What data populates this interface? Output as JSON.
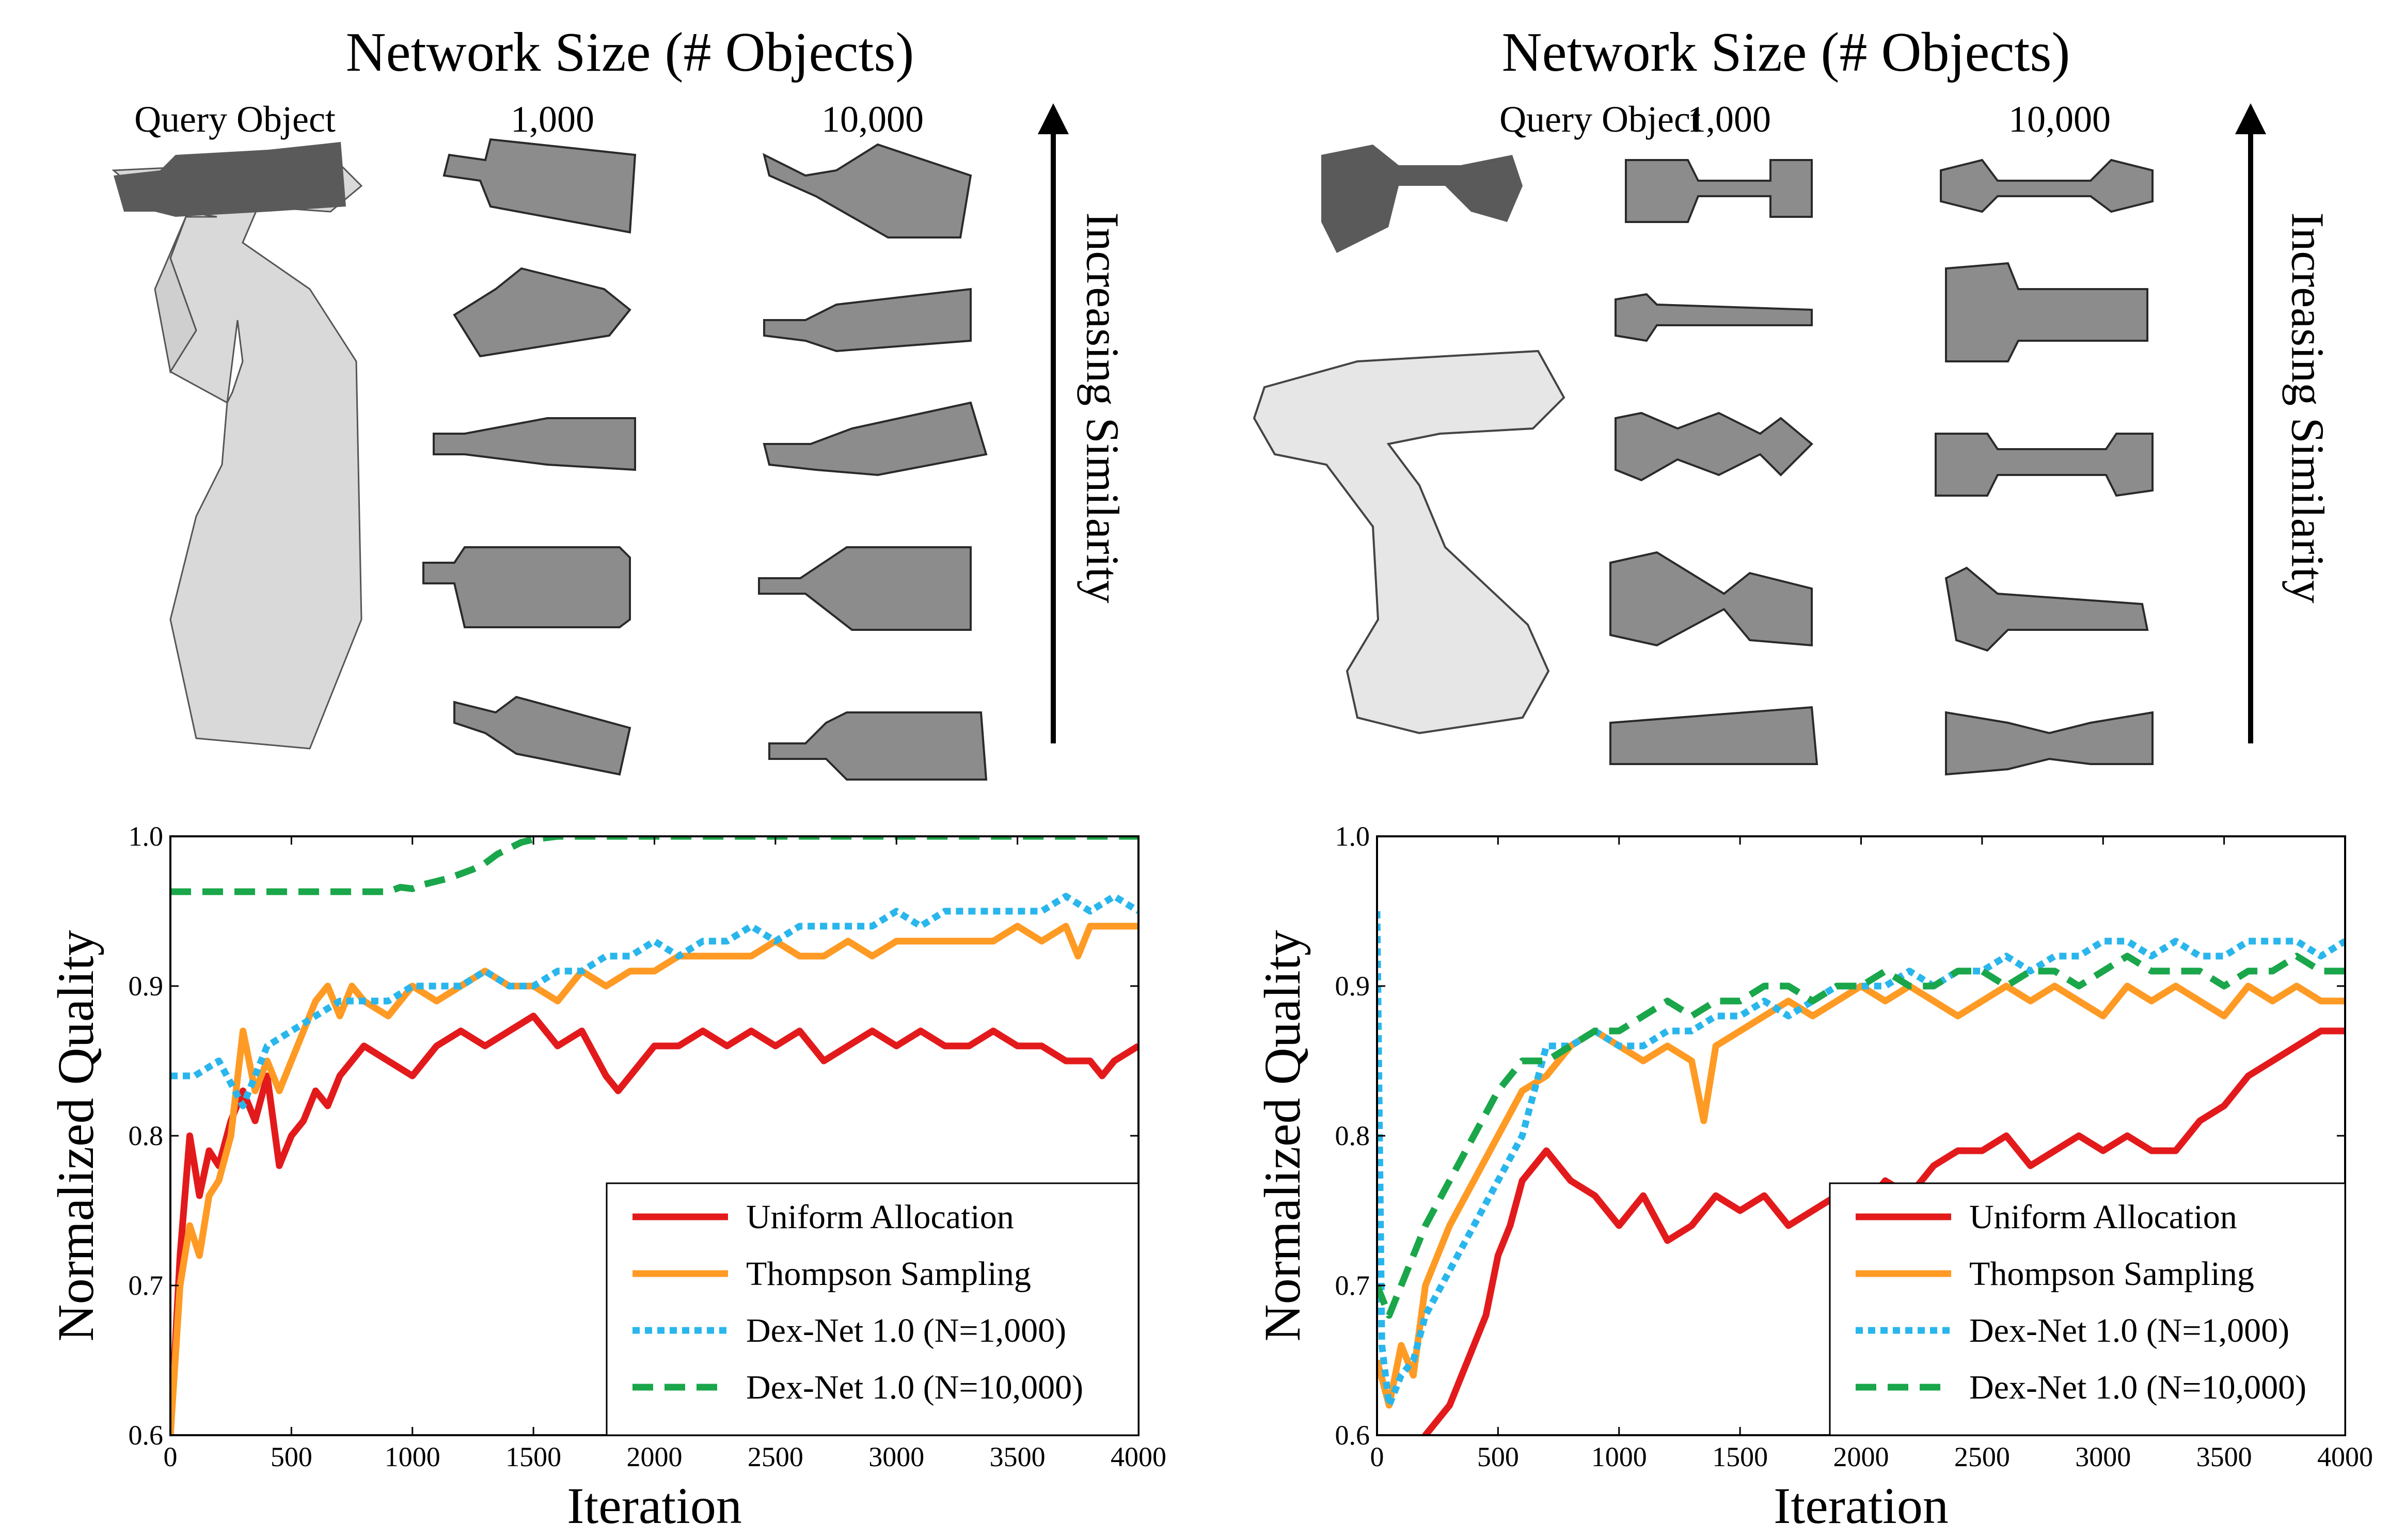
{
  "figure": {
    "network_title": "Network Size (# Objects)",
    "query_label": "Query Object",
    "col_small": "1,000",
    "col_large": "10,000",
    "similarity_label": "Increasing Similarity"
  },
  "chart_data": [
    {
      "type": "line",
      "xlabel": "Iteration",
      "ylabel": "Normalized Quality",
      "xlim": [
        0,
        4000
      ],
      "ylim": [
        0.6,
        1.0
      ],
      "xticks": [
        "0",
        "500",
        "1000",
        "1500",
        "2000",
        "2500",
        "3000",
        "3500",
        "4000"
      ],
      "yticks": [
        "0.6",
        "0.7",
        "0.8",
        "0.9",
        "1.0"
      ],
      "legend_position": "lower-right",
      "grid": false,
      "series": [
        {
          "name": "Uniform Allocation",
          "color": "#e31a1c",
          "dash": "solid",
          "x": [
            0,
            40,
            80,
            120,
            160,
            200,
            250,
            300,
            350,
            400,
            450,
            500,
            550,
            600,
            650,
            700,
            750,
            800,
            900,
            1000,
            1100,
            1200,
            1300,
            1400,
            1500,
            1600,
            1700,
            1800,
            1850,
            1900,
            2000,
            2100,
            2200,
            2300,
            2400,
            2500,
            2600,
            2700,
            2800,
            2900,
            3000,
            3100,
            3200,
            3300,
            3400,
            3500,
            3600,
            3700,
            3800,
            3850,
            3900,
            4000
          ],
          "y": [
            0.6,
            0.72,
            0.8,
            0.76,
            0.79,
            0.78,
            0.81,
            0.83,
            0.81,
            0.84,
            0.78,
            0.8,
            0.81,
            0.83,
            0.82,
            0.84,
            0.85,
            0.86,
            0.85,
            0.84,
            0.86,
            0.87,
            0.86,
            0.87,
            0.88,
            0.86,
            0.87,
            0.84,
            0.83,
            0.84,
            0.86,
            0.86,
            0.87,
            0.86,
            0.87,
            0.86,
            0.87,
            0.85,
            0.86,
            0.87,
            0.86,
            0.87,
            0.86,
            0.86,
            0.87,
            0.86,
            0.86,
            0.85,
            0.85,
            0.84,
            0.85,
            0.86
          ]
        },
        {
          "name": "Thompson Sampling",
          "color": "#ff9a24",
          "dash": "solid",
          "x": [
            0,
            40,
            80,
            120,
            160,
            200,
            250,
            300,
            350,
            400,
            450,
            500,
            550,
            600,
            650,
            700,
            750,
            800,
            900,
            1000,
            1100,
            1200,
            1300,
            1400,
            1500,
            1600,
            1700,
            1800,
            1900,
            2000,
            2100,
            2200,
            2300,
            2400,
            2500,
            2600,
            2700,
            2800,
            2900,
            3000,
            3100,
            3200,
            3300,
            3400,
            3500,
            3600,
            3700,
            3750,
            3800,
            3900,
            4000
          ],
          "y": [
            0.6,
            0.7,
            0.74,
            0.72,
            0.76,
            0.77,
            0.8,
            0.87,
            0.83,
            0.85,
            0.83,
            0.85,
            0.87,
            0.89,
            0.9,
            0.88,
            0.9,
            0.89,
            0.88,
            0.9,
            0.89,
            0.9,
            0.91,
            0.9,
            0.9,
            0.89,
            0.91,
            0.9,
            0.91,
            0.91,
            0.92,
            0.92,
            0.92,
            0.92,
            0.93,
            0.92,
            0.92,
            0.93,
            0.92,
            0.93,
            0.93,
            0.93,
            0.93,
            0.93,
            0.94,
            0.93,
            0.94,
            0.92,
            0.94,
            0.94,
            0.94
          ]
        },
        {
          "name": "Dex-Net 1.0 (N=1,000)",
          "color": "#29b6ec",
          "dash": "dotted",
          "x": [
            0,
            100,
            200,
            300,
            400,
            500,
            600,
            700,
            800,
            900,
            1000,
            1100,
            1200,
            1300,
            1400,
            1500,
            1600,
            1700,
            1800,
            1900,
            2000,
            2100,
            2200,
            2300,
            2400,
            2500,
            2600,
            2700,
            2800,
            2900,
            3000,
            3100,
            3200,
            3300,
            3400,
            3500,
            3600,
            3700,
            3800,
            3900,
            4000
          ],
          "y": [
            0.84,
            0.84,
            0.85,
            0.82,
            0.86,
            0.87,
            0.88,
            0.89,
            0.89,
            0.89,
            0.9,
            0.9,
            0.9,
            0.91,
            0.9,
            0.9,
            0.91,
            0.91,
            0.92,
            0.92,
            0.93,
            0.92,
            0.93,
            0.93,
            0.94,
            0.93,
            0.94,
            0.94,
            0.94,
            0.94,
            0.95,
            0.94,
            0.95,
            0.95,
            0.95,
            0.95,
            0.95,
            0.96,
            0.95,
            0.96,
            0.95
          ]
        },
        {
          "name": "Dex-Net 1.0 (N=10,000)",
          "color": "#1aa64a",
          "dash": "dashed",
          "x": [
            0,
            300,
            600,
            900,
            950,
            1000,
            1050,
            1100,
            1150,
            1200,
            1250,
            1300,
            1350,
            1400,
            1450,
            1500,
            1550,
            1600,
            2000,
            2500,
            3000,
            3500,
            4000
          ],
          "y": [
            0.963,
            0.963,
            0.963,
            0.963,
            0.966,
            0.965,
            0.968,
            0.97,
            0.972,
            0.975,
            0.978,
            0.982,
            0.988,
            0.992,
            0.996,
            0.998,
            0.999,
            1.0,
            1.0,
            1.0,
            1.0,
            1.0,
            1.0
          ]
        }
      ]
    },
    {
      "type": "line",
      "xlabel": "Iteration",
      "ylabel": "Normalized Quality",
      "xlim": [
        0,
        4000
      ],
      "ylim": [
        0.6,
        1.0
      ],
      "xticks": [
        "0",
        "500",
        "1000",
        "1500",
        "2000",
        "2500",
        "3000",
        "3500",
        "4000"
      ],
      "yticks": [
        "0.6",
        "0.7",
        "0.8",
        "0.9",
        "1.0"
      ],
      "legend_position": "lower-right",
      "grid": false,
      "series": [
        {
          "name": "Uniform Allocation",
          "color": "#e31a1c",
          "dash": "solid",
          "x": [
            0,
            100,
            200,
            300,
            400,
            450,
            500,
            550,
            600,
            650,
            700,
            800,
            900,
            1000,
            1100,
            1200,
            1300,
            1400,
            1500,
            1600,
            1700,
            1800,
            1900,
            2000,
            2100,
            2200,
            2300,
            2400,
            2500,
            2600,
            2700,
            2800,
            2900,
            3000,
            3100,
            3200,
            3300,
            3400,
            3500,
            3600,
            3700,
            3800,
            3900,
            4000
          ],
          "y": [
            0.6,
            0.56,
            0.6,
            0.62,
            0.66,
            0.68,
            0.72,
            0.74,
            0.77,
            0.78,
            0.79,
            0.77,
            0.76,
            0.74,
            0.76,
            0.73,
            0.74,
            0.76,
            0.75,
            0.76,
            0.74,
            0.75,
            0.76,
            0.75,
            0.77,
            0.76,
            0.78,
            0.79,
            0.79,
            0.8,
            0.78,
            0.79,
            0.8,
            0.79,
            0.8,
            0.79,
            0.79,
            0.81,
            0.82,
            0.84,
            0.85,
            0.86,
            0.87,
            0.87
          ]
        },
        {
          "name": "Thompson Sampling",
          "color": "#ff9a24",
          "dash": "solid",
          "x": [
            0,
            50,
            100,
            150,
            200,
            300,
            400,
            500,
            600,
            700,
            800,
            900,
            1000,
            1100,
            1200,
            1300,
            1350,
            1400,
            1500,
            1600,
            1700,
            1800,
            1900,
            2000,
            2100,
            2200,
            2300,
            2400,
            2500,
            2600,
            2700,
            2800,
            2900,
            3000,
            3100,
            3200,
            3300,
            3400,
            3500,
            3600,
            3700,
            3800,
            3900,
            4000
          ],
          "y": [
            0.65,
            0.62,
            0.66,
            0.64,
            0.7,
            0.74,
            0.77,
            0.8,
            0.83,
            0.84,
            0.86,
            0.87,
            0.86,
            0.85,
            0.86,
            0.85,
            0.81,
            0.86,
            0.87,
            0.88,
            0.89,
            0.88,
            0.89,
            0.9,
            0.89,
            0.9,
            0.89,
            0.88,
            0.89,
            0.9,
            0.89,
            0.9,
            0.89,
            0.88,
            0.9,
            0.89,
            0.9,
            0.89,
            0.88,
            0.9,
            0.89,
            0.9,
            0.89,
            0.89
          ]
        },
        {
          "name": "Dex-Net 1.0 (N=1,000)",
          "color": "#29b6ec",
          "dash": "dotted",
          "x": [
            0,
            20,
            50,
            100,
            150,
            200,
            300,
            400,
            500,
            600,
            700,
            800,
            900,
            1000,
            1100,
            1200,
            1300,
            1400,
            1500,
            1600,
            1700,
            1800,
            1900,
            2000,
            2100,
            2200,
            2300,
            2400,
            2500,
            2600,
            2700,
            2800,
            2900,
            3000,
            3100,
            3200,
            3300,
            3400,
            3500,
            3600,
            3700,
            3800,
            3900,
            4000
          ],
          "y": [
            0.95,
            0.66,
            0.62,
            0.64,
            0.65,
            0.68,
            0.71,
            0.74,
            0.77,
            0.8,
            0.86,
            0.86,
            0.87,
            0.86,
            0.86,
            0.87,
            0.87,
            0.88,
            0.88,
            0.89,
            0.88,
            0.89,
            0.9,
            0.9,
            0.9,
            0.91,
            0.9,
            0.91,
            0.91,
            0.92,
            0.91,
            0.92,
            0.92,
            0.93,
            0.93,
            0.92,
            0.93,
            0.92,
            0.92,
            0.93,
            0.93,
            0.93,
            0.92,
            0.93
          ]
        },
        {
          "name": "Dex-Net 1.0 (N=10,000)",
          "color": "#1aa64a",
          "dash": "dashed",
          "x": [
            0,
            50,
            100,
            150,
            200,
            300,
            400,
            500,
            600,
            700,
            800,
            900,
            1000,
            1100,
            1200,
            1300,
            1400,
            1500,
            1600,
            1700,
            1800,
            1900,
            2000,
            2100,
            2200,
            2300,
            2400,
            2500,
            2600,
            2700,
            2800,
            2900,
            3000,
            3100,
            3200,
            3300,
            3400,
            3500,
            3600,
            3700,
            3800,
            3900,
            4000
          ],
          "y": [
            0.7,
            0.68,
            0.7,
            0.72,
            0.74,
            0.77,
            0.8,
            0.83,
            0.85,
            0.85,
            0.86,
            0.87,
            0.87,
            0.88,
            0.89,
            0.88,
            0.89,
            0.89,
            0.9,
            0.9,
            0.89,
            0.9,
            0.9,
            0.91,
            0.9,
            0.9,
            0.91,
            0.91,
            0.9,
            0.91,
            0.91,
            0.9,
            0.91,
            0.92,
            0.91,
            0.91,
            0.91,
            0.9,
            0.91,
            0.91,
            0.92,
            0.91,
            0.91
          ]
        }
      ]
    }
  ]
}
